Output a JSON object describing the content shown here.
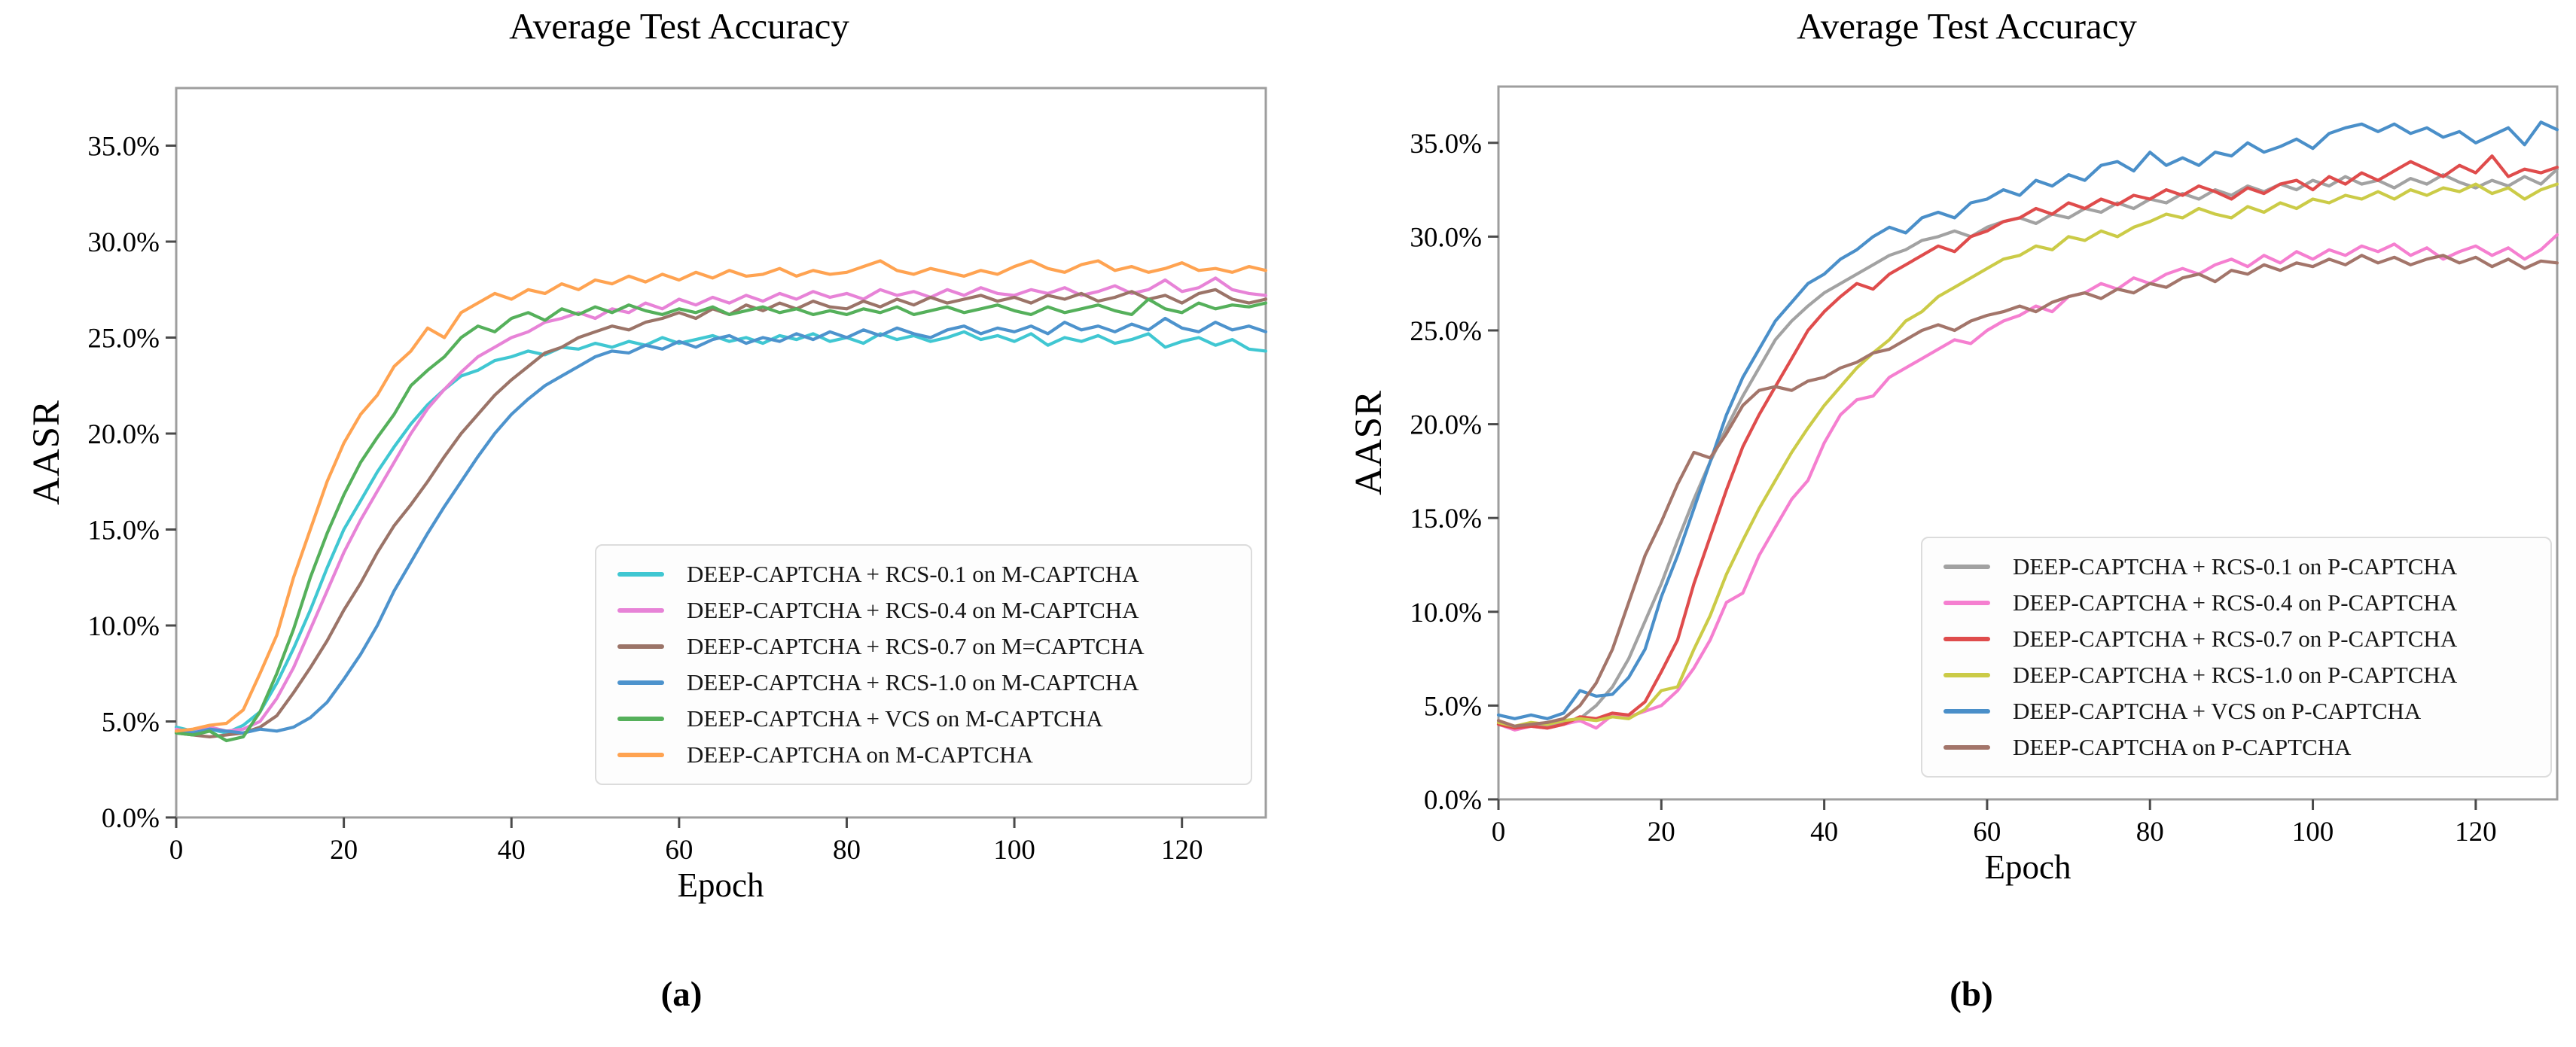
{
  "figure": {
    "captions": [
      "(a)",
      "(b)"
    ],
    "background_color": "#ffffff",
    "frame_color": "#9e9e9e",
    "tick_color": "#4a4a4a",
    "text_color": "#000000"
  },
  "chart_data": [
    {
      "type": "line",
      "title": "Average Test Accuracy",
      "xlabel": "Epoch",
      "ylabel": "AASR",
      "xlim": [
        0,
        130
      ],
      "ylim_percent": [
        0,
        38
      ],
      "x_ticks": [
        0,
        20,
        40,
        60,
        80,
        100,
        120
      ],
      "y_tick_labels": [
        "0.0%",
        "5.0%",
        "10.0%",
        "15.0%",
        "20.0%",
        "25.0%",
        "30.0%",
        "35.0%"
      ],
      "grid": false,
      "legend_position": "lower right",
      "x_start": 0,
      "x_step": 2,
      "series": [
        {
          "name": "DEEP-CAPTCHA + RCS-0.1 on M-CAPTCHA",
          "color": "#40c7d2",
          "values": [
            4.7,
            4.5,
            4.6,
            4.4,
            4.8,
            5.5,
            7.0,
            8.8,
            10.8,
            13.0,
            15.0,
            16.5,
            18.0,
            19.3,
            20.5,
            21.5,
            22.3,
            23.0,
            23.3,
            23.8,
            24.0,
            24.3,
            24.1,
            24.5,
            24.4,
            24.7,
            24.5,
            24.8,
            24.6,
            25.0,
            24.7,
            24.9,
            25.1,
            24.8,
            25.0,
            24.7,
            25.1,
            24.9,
            25.2,
            24.8,
            25.0,
            24.7,
            25.2,
            24.9,
            25.1,
            24.8,
            25.0,
            25.3,
            24.9,
            25.1,
            24.8,
            25.2,
            24.6,
            25.0,
            24.8,
            25.1,
            24.7,
            24.9,
            25.2,
            24.5,
            24.8,
            25.0,
            24.6,
            24.9,
            24.4,
            24.3
          ]
        },
        {
          "name": "DEEP-CAPTCHA + RCS-0.4 on M-CAPTCHA",
          "color": "#e783d7",
          "values": [
            4.6,
            4.4,
            4.7,
            4.5,
            4.6,
            5.0,
            6.2,
            7.8,
            9.8,
            11.8,
            13.8,
            15.5,
            17.0,
            18.5,
            20.0,
            21.3,
            22.3,
            23.2,
            24.0,
            24.5,
            25.0,
            25.3,
            25.8,
            26.0,
            26.3,
            26.0,
            26.5,
            26.3,
            26.8,
            26.5,
            27.0,
            26.7,
            27.1,
            26.8,
            27.2,
            26.9,
            27.3,
            27.0,
            27.4,
            27.1,
            27.3,
            27.0,
            27.5,
            27.2,
            27.4,
            27.1,
            27.5,
            27.2,
            27.6,
            27.3,
            27.2,
            27.5,
            27.3,
            27.6,
            27.2,
            27.4,
            27.7,
            27.3,
            27.5,
            28.0,
            27.4,
            27.6,
            28.1,
            27.5,
            27.3,
            27.2
          ]
        },
        {
          "name": "DEEP-CAPTCHA + RCS-0.7 on M=CAPTCHA",
          "color": "#9b7468",
          "values": [
            4.4,
            4.3,
            4.2,
            4.3,
            4.4,
            4.7,
            5.3,
            6.5,
            7.8,
            9.2,
            10.8,
            12.2,
            13.8,
            15.2,
            16.3,
            17.5,
            18.8,
            20.0,
            21.0,
            22.0,
            22.8,
            23.5,
            24.2,
            24.5,
            25.0,
            25.3,
            25.6,
            25.4,
            25.8,
            26.0,
            26.3,
            26.0,
            26.5,
            26.2,
            26.7,
            26.4,
            26.8,
            26.5,
            26.9,
            26.6,
            26.5,
            26.9,
            26.6,
            27.0,
            26.7,
            27.1,
            26.8,
            27.0,
            27.2,
            26.9,
            27.1,
            26.8,
            27.2,
            27.0,
            27.3,
            26.9,
            27.1,
            27.4,
            27.0,
            27.2,
            26.8,
            27.3,
            27.5,
            27.0,
            26.8,
            27.0
          ]
        },
        {
          "name": "DEEP-CAPTCHA + RCS-1.0 on M-CAPTCHA",
          "color": "#4d93cd",
          "values": [
            4.5,
            4.4,
            4.6,
            4.5,
            4.4,
            4.6,
            4.5,
            4.7,
            5.2,
            6.0,
            7.2,
            8.5,
            10.0,
            11.8,
            13.3,
            14.8,
            16.2,
            17.5,
            18.8,
            20.0,
            21.0,
            21.8,
            22.5,
            23.0,
            23.5,
            24.0,
            24.3,
            24.2,
            24.6,
            24.4,
            24.8,
            24.5,
            24.9,
            25.1,
            24.7,
            25.0,
            24.8,
            25.2,
            24.9,
            25.3,
            25.0,
            25.4,
            25.1,
            25.5,
            25.2,
            25.0,
            25.4,
            25.6,
            25.2,
            25.5,
            25.3,
            25.6,
            25.2,
            25.8,
            25.4,
            25.6,
            25.3,
            25.7,
            25.4,
            26.0,
            25.5,
            25.3,
            25.8,
            25.4,
            25.6,
            25.3
          ]
        },
        {
          "name": "DEEP-CAPTCHA + VCS on M-CAPTCHA",
          "color": "#55b05b",
          "values": [
            4.4,
            4.3,
            4.5,
            4.0,
            4.2,
            5.5,
            7.5,
            9.8,
            12.5,
            14.8,
            16.8,
            18.5,
            19.8,
            21.0,
            22.5,
            23.3,
            24.0,
            25.0,
            25.6,
            25.3,
            26.0,
            26.3,
            25.9,
            26.5,
            26.2,
            26.6,
            26.3,
            26.7,
            26.4,
            26.2,
            26.5,
            26.3,
            26.6,
            26.2,
            26.4,
            26.6,
            26.3,
            26.5,
            26.2,
            26.4,
            26.2,
            26.5,
            26.3,
            26.6,
            26.2,
            26.4,
            26.6,
            26.3,
            26.5,
            26.7,
            26.4,
            26.2,
            26.6,
            26.3,
            26.5,
            26.7,
            26.4,
            26.2,
            27.0,
            26.5,
            26.3,
            26.8,
            26.5,
            26.7,
            26.6,
            26.8
          ]
        },
        {
          "name": "DEEP-CAPTCHA on M-CAPTCHA",
          "color": "#ffa351",
          "values": [
            4.5,
            4.6,
            4.8,
            4.9,
            5.6,
            7.5,
            9.5,
            12.5,
            15.0,
            17.5,
            19.5,
            21.0,
            22.0,
            23.5,
            24.3,
            25.5,
            25.0,
            26.3,
            26.8,
            27.3,
            27.0,
            27.5,
            27.3,
            27.8,
            27.5,
            28.0,
            27.8,
            28.2,
            27.9,
            28.3,
            28.0,
            28.4,
            28.1,
            28.5,
            28.2,
            28.3,
            28.6,
            28.2,
            28.5,
            28.3,
            28.4,
            28.7,
            29.0,
            28.5,
            28.3,
            28.6,
            28.4,
            28.2,
            28.5,
            28.3,
            28.7,
            29.0,
            28.6,
            28.4,
            28.8,
            29.0,
            28.5,
            28.7,
            28.4,
            28.6,
            28.9,
            28.5,
            28.6,
            28.4,
            28.7,
            28.5
          ]
        }
      ]
    },
    {
      "type": "line",
      "title": "Average Test Accuracy",
      "xlabel": "Epoch",
      "ylabel": "AASR",
      "xlim": [
        0,
        130
      ],
      "ylim_percent": [
        0,
        38
      ],
      "x_ticks": [
        0,
        20,
        40,
        60,
        80,
        100,
        120
      ],
      "y_tick_labels": [
        "0.0%",
        "5.0%",
        "10.0%",
        "15.0%",
        "20.0%",
        "25.0%",
        "30.0%",
        "35.0%"
      ],
      "grid": false,
      "legend_position": "lower right",
      "x_start": 0,
      "x_step": 2,
      "series": [
        {
          "name": "DEEP-CAPTCHA + RCS-0.1 on P-CAPTCHA",
          "color": "#a2a2a2",
          "values": [
            4.1,
            3.8,
            4.0,
            3.9,
            4.1,
            4.3,
            5.0,
            6.0,
            7.5,
            9.5,
            11.5,
            13.8,
            16.0,
            18.0,
            19.8,
            21.5,
            23.0,
            24.5,
            25.5,
            26.3,
            27.0,
            27.5,
            28.0,
            28.5,
            29.0,
            29.3,
            29.8,
            30.0,
            30.3,
            30.0,
            30.5,
            30.8,
            31.0,
            30.7,
            31.2,
            31.0,
            31.5,
            31.3,
            31.8,
            31.5,
            32.0,
            31.8,
            32.3,
            32.0,
            32.5,
            32.2,
            32.7,
            32.4,
            32.8,
            32.5,
            33.0,
            32.7,
            33.2,
            32.8,
            33.0,
            32.6,
            33.1,
            32.8,
            33.3,
            32.9,
            32.6,
            33.0,
            32.7,
            33.2,
            32.8,
            33.6
          ]
        },
        {
          "name": "DEEP-CAPTCHA + RCS-0.4 on P-CAPTCHA",
          "color": "#f57fd0",
          "values": [
            4.0,
            3.7,
            3.9,
            3.8,
            4.0,
            4.2,
            3.8,
            4.5,
            4.4,
            4.7,
            5.0,
            5.8,
            7.0,
            8.5,
            10.5,
            11.0,
            13.0,
            14.5,
            16.0,
            17.0,
            19.0,
            20.5,
            21.3,
            21.5,
            22.5,
            23.0,
            23.5,
            24.0,
            24.5,
            24.3,
            25.0,
            25.5,
            25.8,
            26.3,
            26.0,
            26.8,
            27.0,
            27.5,
            27.2,
            27.8,
            27.5,
            28.0,
            28.3,
            28.0,
            28.5,
            28.8,
            28.4,
            29.0,
            28.6,
            29.2,
            28.8,
            29.3,
            29.0,
            29.5,
            29.2,
            29.6,
            29.0,
            29.4,
            28.8,
            29.2,
            29.5,
            29.0,
            29.4,
            28.8,
            29.3,
            30.1
          ]
        },
        {
          "name": "DEEP-CAPTCHA + RCS-0.7 on P-CAPTCHA",
          "color": "#df4c4c",
          "values": [
            4.0,
            3.8,
            3.9,
            3.8,
            4.0,
            4.4,
            4.3,
            4.6,
            4.5,
            5.2,
            6.8,
            8.5,
            11.5,
            14.0,
            16.5,
            18.8,
            20.5,
            22.0,
            23.5,
            25.0,
            26.0,
            26.8,
            27.5,
            27.2,
            28.0,
            28.5,
            29.0,
            29.5,
            29.2,
            30.0,
            30.3,
            30.8,
            31.0,
            31.5,
            31.2,
            31.8,
            31.5,
            32.0,
            31.7,
            32.2,
            32.0,
            32.5,
            32.2,
            32.7,
            32.4,
            32.0,
            32.6,
            32.3,
            32.8,
            33.0,
            32.5,
            33.2,
            32.8,
            33.4,
            33.0,
            33.5,
            34.0,
            33.6,
            33.2,
            33.8,
            33.4,
            34.3,
            33.2,
            33.6,
            33.4,
            33.7
          ]
        },
        {
          "name": "DEEP-CAPTCHA + RCS-1.0 on P-CAPTCHA",
          "color": "#cbcb47",
          "values": [
            4.1,
            3.9,
            4.1,
            4.0,
            4.2,
            4.3,
            4.2,
            4.4,
            4.3,
            4.8,
            5.8,
            6.0,
            8.0,
            9.8,
            12.0,
            13.8,
            15.5,
            17.0,
            18.5,
            19.8,
            21.0,
            22.0,
            23.0,
            23.8,
            24.5,
            25.5,
            26.0,
            26.8,
            27.3,
            27.8,
            28.3,
            28.8,
            29.0,
            29.5,
            29.3,
            30.0,
            29.8,
            30.3,
            30.0,
            30.5,
            30.8,
            31.2,
            31.0,
            31.5,
            31.2,
            31.0,
            31.6,
            31.3,
            31.8,
            31.5,
            32.0,
            31.8,
            32.2,
            32.0,
            32.4,
            32.0,
            32.5,
            32.2,
            32.6,
            32.4,
            32.8,
            32.3,
            32.6,
            32.0,
            32.5,
            32.8
          ]
        },
        {
          "name": "DEEP-CAPTCHA + VCS on P-CAPTCHA",
          "color": "#4a8fc9",
          "values": [
            4.5,
            4.3,
            4.5,
            4.3,
            4.6,
            5.8,
            5.5,
            5.6,
            6.5,
            8.0,
            10.8,
            13.0,
            15.5,
            18.0,
            20.5,
            22.5,
            24.0,
            25.5,
            26.5,
            27.5,
            28.0,
            28.8,
            29.3,
            30.0,
            30.5,
            30.2,
            31.0,
            31.3,
            31.0,
            31.8,
            32.0,
            32.5,
            32.2,
            33.0,
            32.7,
            33.3,
            33.0,
            33.8,
            34.0,
            33.5,
            34.5,
            33.8,
            34.2,
            33.8,
            34.5,
            34.3,
            35.0,
            34.5,
            34.8,
            35.2,
            34.7,
            35.5,
            35.8,
            36.0,
            35.6,
            36.0,
            35.5,
            35.8,
            35.3,
            35.6,
            35.0,
            35.4,
            35.8,
            34.9,
            36.1,
            35.7
          ]
        },
        {
          "name": "DEEP-CAPTCHA on P-CAPTCHA",
          "color": "#a3756a",
          "values": [
            4.2,
            3.9,
            4.0,
            4.1,
            4.3,
            5.0,
            6.2,
            8.0,
            10.5,
            13.0,
            14.8,
            16.8,
            18.5,
            18.2,
            19.5,
            21.0,
            21.8,
            22.0,
            21.8,
            22.3,
            22.5,
            23.0,
            23.3,
            23.8,
            24.0,
            24.5,
            25.0,
            25.3,
            25.0,
            25.5,
            25.8,
            26.0,
            26.3,
            26.0,
            26.5,
            26.8,
            27.0,
            26.7,
            27.2,
            27.0,
            27.5,
            27.3,
            27.8,
            28.0,
            27.6,
            28.2,
            28.0,
            28.5,
            28.2,
            28.6,
            28.4,
            28.8,
            28.5,
            29.0,
            28.6,
            28.9,
            28.5,
            28.8,
            29.0,
            28.6,
            28.9,
            28.4,
            28.8,
            28.3,
            28.7,
            28.6
          ]
        }
      ]
    }
  ]
}
